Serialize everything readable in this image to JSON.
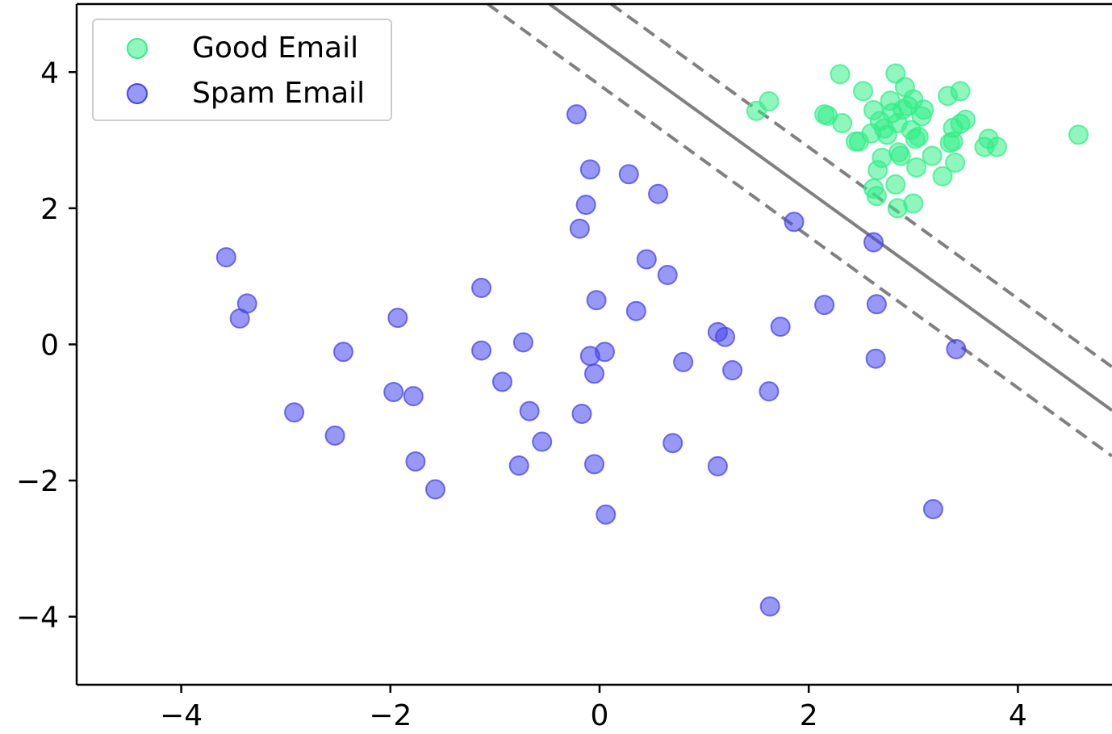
{
  "chart_data": {
    "type": "scatter",
    "title": "",
    "xlabel": "",
    "ylabel": "",
    "xlim": [
      -5,
      4.9
    ],
    "ylim": [
      -5,
      5
    ],
    "xticks": [
      -4,
      -2,
      0,
      2,
      4
    ],
    "yticks": [
      -4,
      -2,
      0,
      2,
      4
    ],
    "xtick_labels": [
      "−4",
      "−2",
      "0",
      "2",
      "4"
    ],
    "ytick_labels": [
      "−4",
      "−2",
      "0",
      "2",
      "4"
    ],
    "grid": false,
    "legend_position": "top-left",
    "series": [
      {
        "name": "Good Email",
        "color": "#33ee88",
        "points": [
          [
            1.5,
            3.43
          ],
          [
            1.62,
            3.57
          ],
          [
            2.15,
            3.38
          ],
          [
            2.18,
            3.36
          ],
          [
            2.3,
            3.97
          ],
          [
            2.32,
            3.25
          ],
          [
            2.45,
            2.98
          ],
          [
            2.48,
            2.98
          ],
          [
            2.52,
            3.72
          ],
          [
            2.6,
            3.1
          ],
          [
            2.62,
            3.44
          ],
          [
            2.68,
            3.28
          ],
          [
            2.62,
            2.29
          ],
          [
            2.65,
            2.18
          ],
          [
            2.66,
            2.56
          ],
          [
            2.7,
            2.74
          ],
          [
            2.72,
            3.17
          ],
          [
            2.75,
            3.08
          ],
          [
            2.78,
            3.58
          ],
          [
            2.8,
            3.4
          ],
          [
            2.83,
            3.98
          ],
          [
            2.85,
            3.25
          ],
          [
            2.86,
            2.82
          ],
          [
            2.88,
            2.77
          ],
          [
            2.9,
            3.45
          ],
          [
            2.92,
            3.78
          ],
          [
            2.95,
            3.5
          ],
          [
            2.98,
            3.15
          ],
          [
            3.0,
            3.6
          ],
          [
            3.02,
            3.02
          ],
          [
            3.05,
            3.05
          ],
          [
            3.08,
            3.35
          ],
          [
            3.1,
            3.45
          ],
          [
            2.83,
            2.35
          ],
          [
            2.85,
            2.0
          ],
          [
            3.0,
            2.07
          ],
          [
            3.03,
            2.6
          ],
          [
            3.18,
            2.77
          ],
          [
            3.28,
            2.47
          ],
          [
            3.33,
            3.65
          ],
          [
            3.35,
            2.96
          ],
          [
            3.38,
            2.98
          ],
          [
            3.38,
            3.18
          ],
          [
            3.4,
            2.67
          ],
          [
            3.45,
            3.72
          ],
          [
            3.45,
            3.24
          ],
          [
            3.5,
            3.3
          ],
          [
            3.68,
            2.9
          ],
          [
            3.72,
            3.02
          ],
          [
            3.8,
            2.9
          ],
          [
            4.58,
            3.08
          ]
        ]
      },
      {
        "name": "Spam Email",
        "color": "#4444ee",
        "points": [
          [
            -3.57,
            1.28
          ],
          [
            -3.37,
            0.6
          ],
          [
            -3.44,
            0.38
          ],
          [
            -2.45,
            -0.11
          ],
          [
            -2.92,
            -1.0
          ],
          [
            -2.53,
            -1.34
          ],
          [
            -1.93,
            0.39
          ],
          [
            -1.97,
            -0.7
          ],
          [
            -1.78,
            -0.76
          ],
          [
            -1.76,
            -1.72
          ],
          [
            -1.57,
            -2.13
          ],
          [
            -1.13,
            0.83
          ],
          [
            -1.13,
            -0.09
          ],
          [
            -0.93,
            -0.55
          ],
          [
            -0.73,
            0.03
          ],
          [
            -0.67,
            -0.98
          ],
          [
            -0.55,
            -1.43
          ],
          [
            -0.77,
            -1.78
          ],
          [
            -0.22,
            3.38
          ],
          [
            -0.09,
            2.57
          ],
          [
            -0.13,
            2.05
          ],
          [
            -0.19,
            1.7
          ],
          [
            -0.03,
            0.65
          ],
          [
            -0.09,
            -0.17
          ],
          [
            0.05,
            -0.11
          ],
          [
            -0.05,
            -0.43
          ],
          [
            -0.17,
            -1.02
          ],
          [
            -0.05,
            -1.76
          ],
          [
            0.06,
            -2.5
          ],
          [
            0.28,
            2.5
          ],
          [
            0.56,
            2.21
          ],
          [
            0.45,
            1.25
          ],
          [
            0.65,
            1.02
          ],
          [
            0.35,
            0.49
          ],
          [
            0.8,
            -0.26
          ],
          [
            0.7,
            -1.45
          ],
          [
            1.13,
            0.18
          ],
          [
            1.2,
            0.11
          ],
          [
            1.27,
            -0.38
          ],
          [
            1.73,
            0.26
          ],
          [
            1.62,
            -0.69
          ],
          [
            1.13,
            -1.79
          ],
          [
            1.86,
            1.8
          ],
          [
            2.15,
            0.58
          ],
          [
            2.62,
            1.5
          ],
          [
            2.65,
            0.59
          ],
          [
            2.64,
            -0.21
          ],
          [
            3.41,
            -0.07
          ],
          [
            3.19,
            -2.42
          ],
          [
            1.63,
            -3.85
          ]
        ]
      }
    ],
    "decision_boundary": {
      "style": "solid",
      "color": "#808080",
      "points": [
        [
          -0.48,
          5.0
        ],
        [
          4.9,
          -0.97
        ]
      ]
    },
    "margins": {
      "style": "dashed",
      "color": "#808080",
      "lines": [
        [
          [
            0.11,
            5.0
          ],
          [
            4.9,
            -0.33
          ]
        ],
        [
          [
            -1.07,
            5.0
          ],
          [
            4.9,
            -1.64
          ]
        ]
      ]
    }
  }
}
